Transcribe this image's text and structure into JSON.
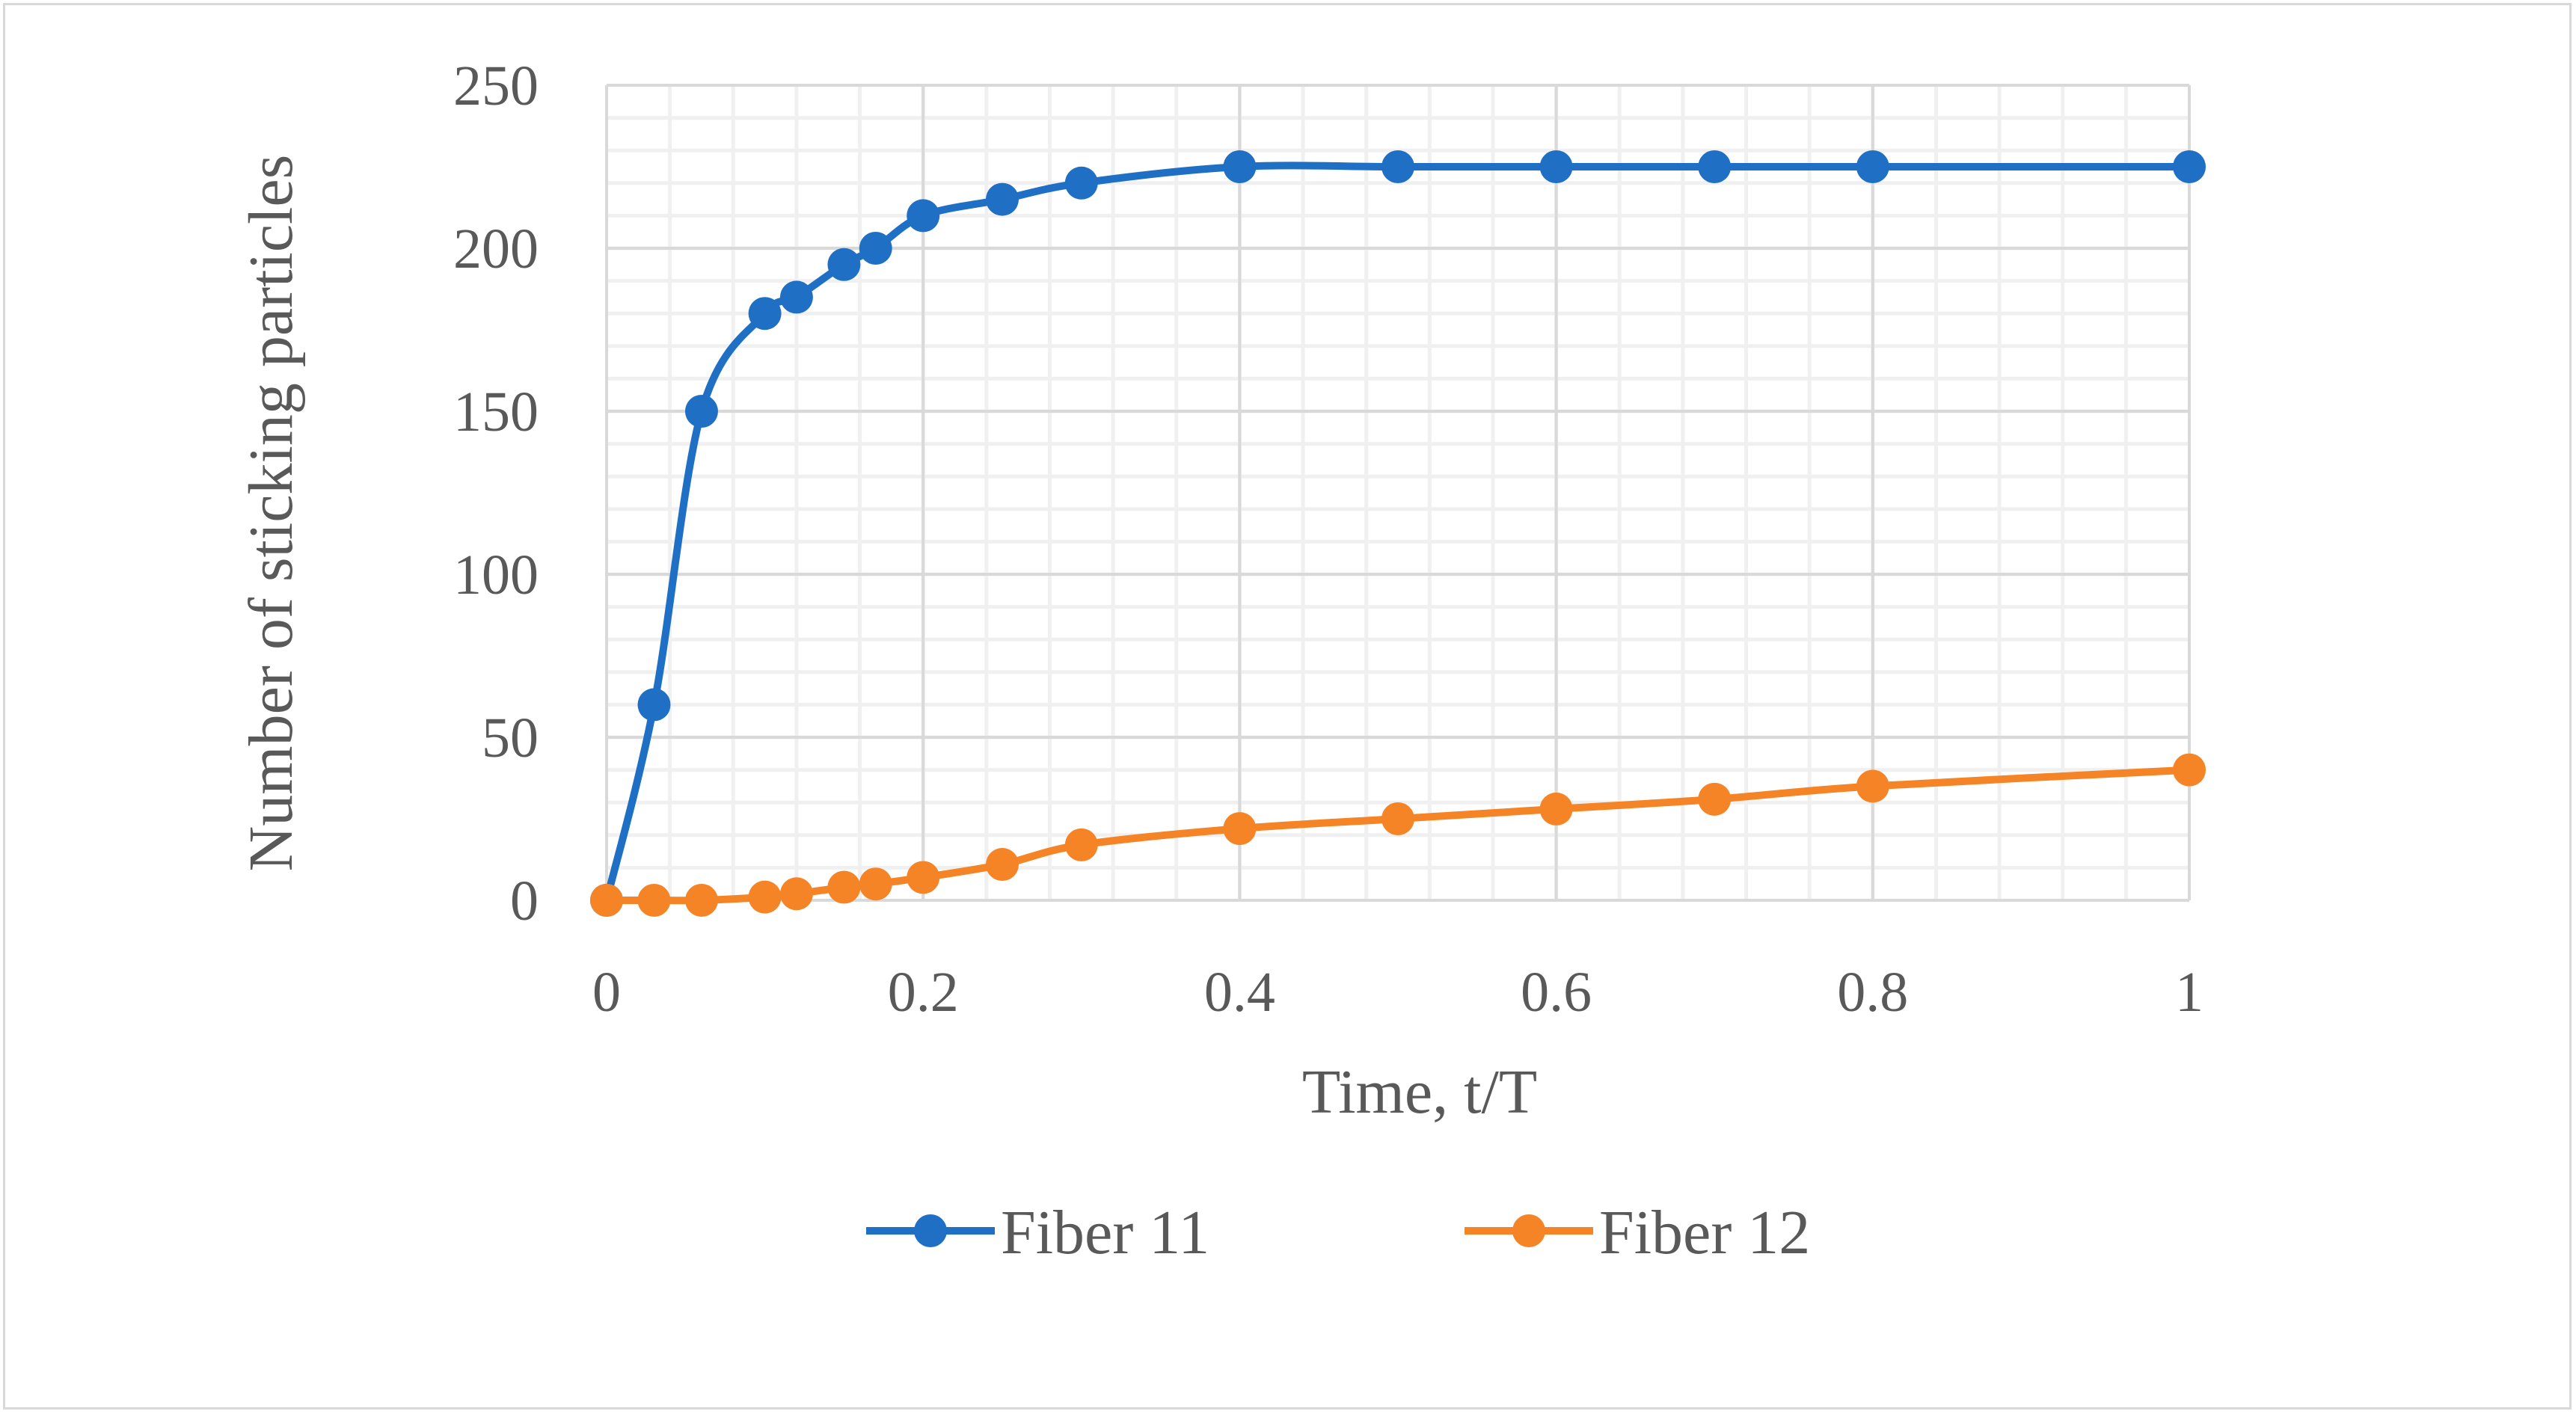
{
  "chart_data": {
    "type": "line",
    "title": "",
    "xlabel": "Time, t/T",
    "ylabel": "Number of sticking particles",
    "xlim": [
      0,
      1
    ],
    "ylim": [
      0,
      250
    ],
    "x_ticks": [
      "0",
      "0.2",
      "0.4",
      "0.6",
      "0.8",
      "1"
    ],
    "y_ticks": [
      "0",
      "50",
      "100",
      "150",
      "200",
      "250"
    ],
    "grid": true,
    "minor_grid": true,
    "smooth": true,
    "legend_position": "bottom",
    "series": [
      {
        "name": "Fiber 11",
        "color": "#1f6fc5",
        "x": [
          0,
          0.03,
          0.06,
          0.1,
          0.12,
          0.15,
          0.17,
          0.2,
          0.25,
          0.3,
          0.4,
          0.5,
          0.6,
          0.7,
          0.8,
          1.0
        ],
        "y": [
          0,
          60,
          150,
          180,
          185,
          195,
          200,
          210,
          215,
          220,
          225,
          225,
          225,
          225,
          225,
          225
        ]
      },
      {
        "name": "Fiber 12",
        "color": "#f58426",
        "x": [
          0,
          0.03,
          0.06,
          0.1,
          0.12,
          0.15,
          0.17,
          0.2,
          0.25,
          0.3,
          0.4,
          0.5,
          0.6,
          0.7,
          0.8,
          1.0
        ],
        "y": [
          0,
          0,
          0,
          1,
          2,
          4,
          5,
          7,
          11,
          17,
          22,
          25,
          28,
          31,
          35,
          40
        ]
      }
    ]
  }
}
